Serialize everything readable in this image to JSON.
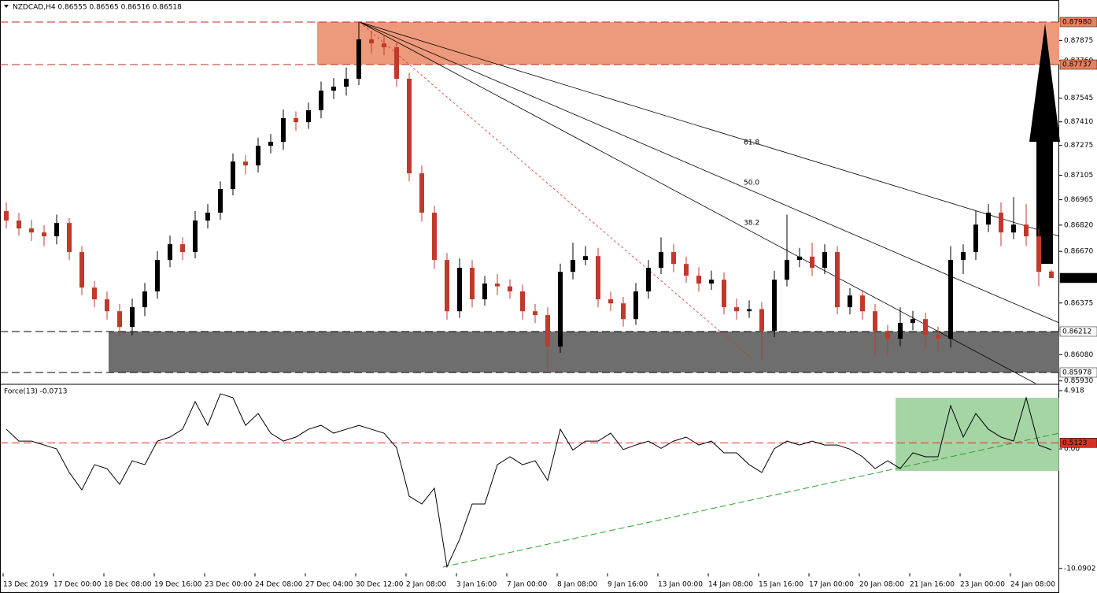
{
  "chart_data": [
    {
      "type": "candlestick",
      "title": "NZDCAD,H4  0.86555 0.86565 0.86516 0.86518",
      "categories": [
        "13 Dec 2019",
        null,
        null,
        null,
        "17 Dec 00:00",
        null,
        null,
        null,
        "18 Dec 08:00",
        null,
        null,
        null,
        "19 Dec 16:00",
        null,
        null,
        null,
        "23 Dec 00:00",
        null,
        null,
        null,
        "24 Dec 08:00",
        null,
        null,
        null,
        "27 Dec 04:00",
        null,
        null,
        null,
        "30 Dec 12:00",
        null,
        null,
        null,
        "2 Jan 08:00",
        null,
        null,
        null,
        "3 Jan 16:00",
        null,
        null,
        null,
        "7 Jan 00:00",
        null,
        null,
        null,
        "8 Jan 08:00",
        null,
        null,
        null,
        "9 Jan 16:00",
        null,
        null,
        null,
        "13 Jan 00:00",
        null,
        null,
        null,
        "14 Jan 08:00",
        null,
        null,
        null,
        "15 Jan 16:00",
        null,
        null,
        null,
        "17 Jan 00:00",
        null,
        null,
        null,
        "20 Jan 08:00",
        null,
        null,
        null,
        "21 Jan 16:00",
        null,
        null,
        null,
        "23 Jan 00:00",
        null,
        null,
        null,
        "24 Jan 08:00",
        null,
        null,
        null
      ],
      "candles": [
        [
          0.869,
          0.8695,
          0.868,
          0.86846
        ],
        [
          0.86846,
          0.8689,
          0.8676,
          0.86801
        ],
        [
          0.86801,
          0.8685,
          0.8673,
          0.86778
        ],
        [
          0.86778,
          0.8682,
          0.867,
          0.86756
        ],
        [
          0.86756,
          0.8688,
          0.8671,
          0.86832
        ],
        [
          0.86832,
          0.8686,
          0.8662,
          0.86666
        ],
        [
          0.86666,
          0.867,
          0.8642,
          0.86463
        ],
        [
          0.86463,
          0.865,
          0.8635,
          0.86396
        ],
        [
          0.86396,
          0.8644,
          0.8628,
          0.86328
        ],
        [
          0.86328,
          0.8637,
          0.8618,
          0.86238
        ],
        [
          0.86238,
          0.864,
          0.8619,
          0.86351
        ],
        [
          0.86351,
          0.8649,
          0.863,
          0.86441
        ],
        [
          0.86441,
          0.8667,
          0.864,
          0.86621
        ],
        [
          0.86621,
          0.8676,
          0.8658,
          0.86711
        ],
        [
          0.86711,
          0.8675,
          0.8662,
          0.86666
        ],
        [
          0.86666,
          0.869,
          0.8663,
          0.86846
        ],
        [
          0.86846,
          0.8694,
          0.868,
          0.86891
        ],
        [
          0.86891,
          0.8707,
          0.8685,
          0.87026
        ],
        [
          0.87026,
          0.8723,
          0.8699,
          0.87183
        ],
        [
          0.87183,
          0.8722,
          0.8711,
          0.87161
        ],
        [
          0.87161,
          0.8732,
          0.8712,
          0.87273
        ],
        [
          0.87273,
          0.8734,
          0.8723,
          0.87296
        ],
        [
          0.87296,
          0.8748,
          0.8725,
          0.87431
        ],
        [
          0.87431,
          0.8747,
          0.8736,
          0.87408
        ],
        [
          0.87408,
          0.8752,
          0.8737,
          0.87476
        ],
        [
          0.87476,
          0.8764,
          0.8743,
          0.87588
        ],
        [
          0.87588,
          0.8766,
          0.8754,
          0.87611
        ],
        [
          0.87611,
          0.8772,
          0.8756,
          0.87656
        ],
        [
          0.87656,
          0.8798,
          0.8762,
          0.87881
        ],
        [
          0.87881,
          0.8793,
          0.878,
          0.87858
        ],
        [
          0.87858,
          0.879,
          0.8779,
          0.87836
        ],
        [
          0.87836,
          0.8787,
          0.8761,
          0.87656
        ],
        [
          0.87656,
          0.8769,
          0.8707,
          0.87116
        ],
        [
          0.87116,
          0.8716,
          0.8684,
          0.86891
        ],
        [
          0.86891,
          0.8693,
          0.8657,
          0.86621
        ],
        [
          0.86621,
          0.8666,
          0.8628,
          0.86328
        ],
        [
          0.86328,
          0.8663,
          0.8629,
          0.86576
        ],
        [
          0.86576,
          0.8662,
          0.8635,
          0.86396
        ],
        [
          0.86396,
          0.8653,
          0.8636,
          0.86486
        ],
        [
          0.86486,
          0.8654,
          0.8642,
          0.8647
        ],
        [
          0.8647,
          0.8651,
          0.864,
          0.86441
        ],
        [
          0.86441,
          0.8648,
          0.8628,
          0.86328
        ],
        [
          0.86328,
          0.8637,
          0.8626,
          0.86306
        ],
        [
          0.86306,
          0.8635,
          0.8599,
          0.86126
        ],
        [
          0.86126,
          0.866,
          0.8609,
          0.86553
        ],
        [
          0.86553,
          0.8672,
          0.8651,
          0.86621
        ],
        [
          0.86621,
          0.867,
          0.8659,
          0.86643
        ],
        [
          0.86643,
          0.8669,
          0.8635,
          0.86396
        ],
        [
          0.86396,
          0.8644,
          0.8633,
          0.86373
        ],
        [
          0.86373,
          0.8641,
          0.8624,
          0.86283
        ],
        [
          0.86283,
          0.8649,
          0.8625,
          0.86441
        ],
        [
          0.86441,
          0.8662,
          0.864,
          0.86576
        ],
        [
          0.86576,
          0.8675,
          0.8654,
          0.86666
        ],
        [
          0.86666,
          0.8671,
          0.8655,
          0.86598
        ],
        [
          0.86598,
          0.8664,
          0.8649,
          0.86531
        ],
        [
          0.86531,
          0.8658,
          0.8644,
          0.86486
        ],
        [
          0.86486,
          0.8656,
          0.8645,
          0.86508
        ],
        [
          0.86508,
          0.8655,
          0.8631,
          0.86351
        ],
        [
          0.86351,
          0.864,
          0.8628,
          0.86328
        ],
        [
          0.86328,
          0.8639,
          0.8629,
          0.8634
        ],
        [
          0.8634,
          0.8638,
          0.8605,
          0.86216
        ],
        [
          0.86216,
          0.8656,
          0.8618,
          0.86508
        ],
        [
          0.86508,
          0.8688,
          0.8647,
          0.86621
        ],
        [
          0.86621,
          0.8669,
          0.8658,
          0.8664
        ],
        [
          0.8664,
          0.8672,
          0.8653,
          0.86576
        ],
        [
          0.86576,
          0.8671,
          0.8654,
          0.86666
        ],
        [
          0.86666,
          0.867,
          0.8631,
          0.86351
        ],
        [
          0.86351,
          0.8646,
          0.8631,
          0.86418
        ],
        [
          0.86418,
          0.8645,
          0.8628,
          0.86328
        ],
        [
          0.86328,
          0.8637,
          0.8608,
          0.86216
        ],
        [
          0.86216,
          0.8625,
          0.8608,
          0.86171
        ],
        [
          0.86171,
          0.8635,
          0.8613,
          0.86261
        ],
        [
          0.86261,
          0.8633,
          0.8622,
          0.86283
        ],
        [
          0.86283,
          0.8632,
          0.8611,
          0.86193
        ],
        [
          0.86193,
          0.8624,
          0.861,
          0.86171
        ],
        [
          0.86171,
          0.867,
          0.8612,
          0.86621
        ],
        [
          0.86621,
          0.8671,
          0.8654,
          0.86666
        ],
        [
          0.86666,
          0.869,
          0.8662,
          0.86823
        ],
        [
          0.86823,
          0.8694,
          0.8678,
          0.86891
        ],
        [
          0.86891,
          0.8695,
          0.867,
          0.86778
        ],
        [
          0.86778,
          0.8698,
          0.8674,
          0.86823
        ],
        [
          0.86823,
          0.8694,
          0.867,
          0.86756
        ],
        [
          0.86756,
          0.868,
          0.8647,
          0.86553
        ],
        [
          0.86555,
          0.86565,
          0.86516,
          0.86518
        ]
      ],
      "bull_color": "#000000",
      "bear_color": "#c0392b",
      "ylim": [
        0.85924,
        0.88025
      ],
      "yticks": [
        0.87875,
        {
          "value": 0.8776,
          "label": "0.87760"
        },
        0.87545,
        {
          "value": 0.8741,
          "label": "0.87410"
        },
        0.87275,
        0.87105,
        0.86965,
        {
          "value": 0.8682,
          "label": "0.86820"
        },
        {
          "value": 0.8667,
          "label": "0.86670"
        },
        0.86375,
        {
          "value": 0.8608,
          "label": "0.86080"
        },
        {
          "value": 0.8593,
          "label": "0.85930"
        }
      ],
      "levels": [
        {
          "value": 0.8798,
          "label": "0.87980",
          "color": "#e8805f"
        },
        {
          "value": 0.87737,
          "color": "#e8805f"
        },
        {
          "value": 0.86212,
          "color": "#ffffff"
        },
        {
          "value": 0.85978,
          "color": "#ffffff"
        },
        {
          "value": 0.86518,
          "color": "#000000"
        }
      ],
      "fib_labels": [
        "61.8",
        "50.0",
        "38.2"
      ]
    },
    {
      "type": "line",
      "title": "Force(13) -0.0713",
      "color": "#000000",
      "values": [
        1.66,
        0.66,
        0.66,
        0.33,
        0,
        -1.99,
        -3.46,
        -1.33,
        -1.66,
        -2.99,
        -1.0,
        -1.33,
        0.66,
        1.0,
        1.66,
        3.99,
        1.99,
        4.65,
        4.32,
        1.99,
        2.99,
        1.33,
        0.66,
        1.0,
        1.66,
        1.99,
        1.33,
        1.66,
        1.99,
        1.66,
        1.33,
        0.1,
        -3.99,
        -4.65,
        -3.32,
        -9.95,
        -7.64,
        -4.65,
        -4.65,
        -1.33,
        -0.66,
        -1.33,
        -1.0,
        -2.66,
        1.66,
        -0.1,
        0.66,
        0.66,
        1.33,
        -0.05,
        0.33,
        0.66,
        0.05,
        0.66,
        1.0,
        0.33,
        0.66,
        -0.33,
        -0.33,
        -1.33,
        -1.99,
        0.02,
        0.66,
        0.33,
        0.66,
        0.33,
        0.33,
        -0.02,
        -0.66,
        -1.66,
        -1.0,
        -1.66,
        -0.33,
        -0.66,
        -0.66,
        3.65,
        1.0,
        2.99,
        1.66,
        1.0,
        0.66,
        4.32,
        0.33,
        -0.0713
      ],
      "ylim": [
        -10.5,
        5.32
      ],
      "yticks": [
        4.918,
        {
          "value": 0,
          "label": "0.00"
        },
        -10.0902
      ],
      "levels": [
        {
          "value": 0.5123,
          "color": "#d93025"
        }
      ]
    }
  ]
}
